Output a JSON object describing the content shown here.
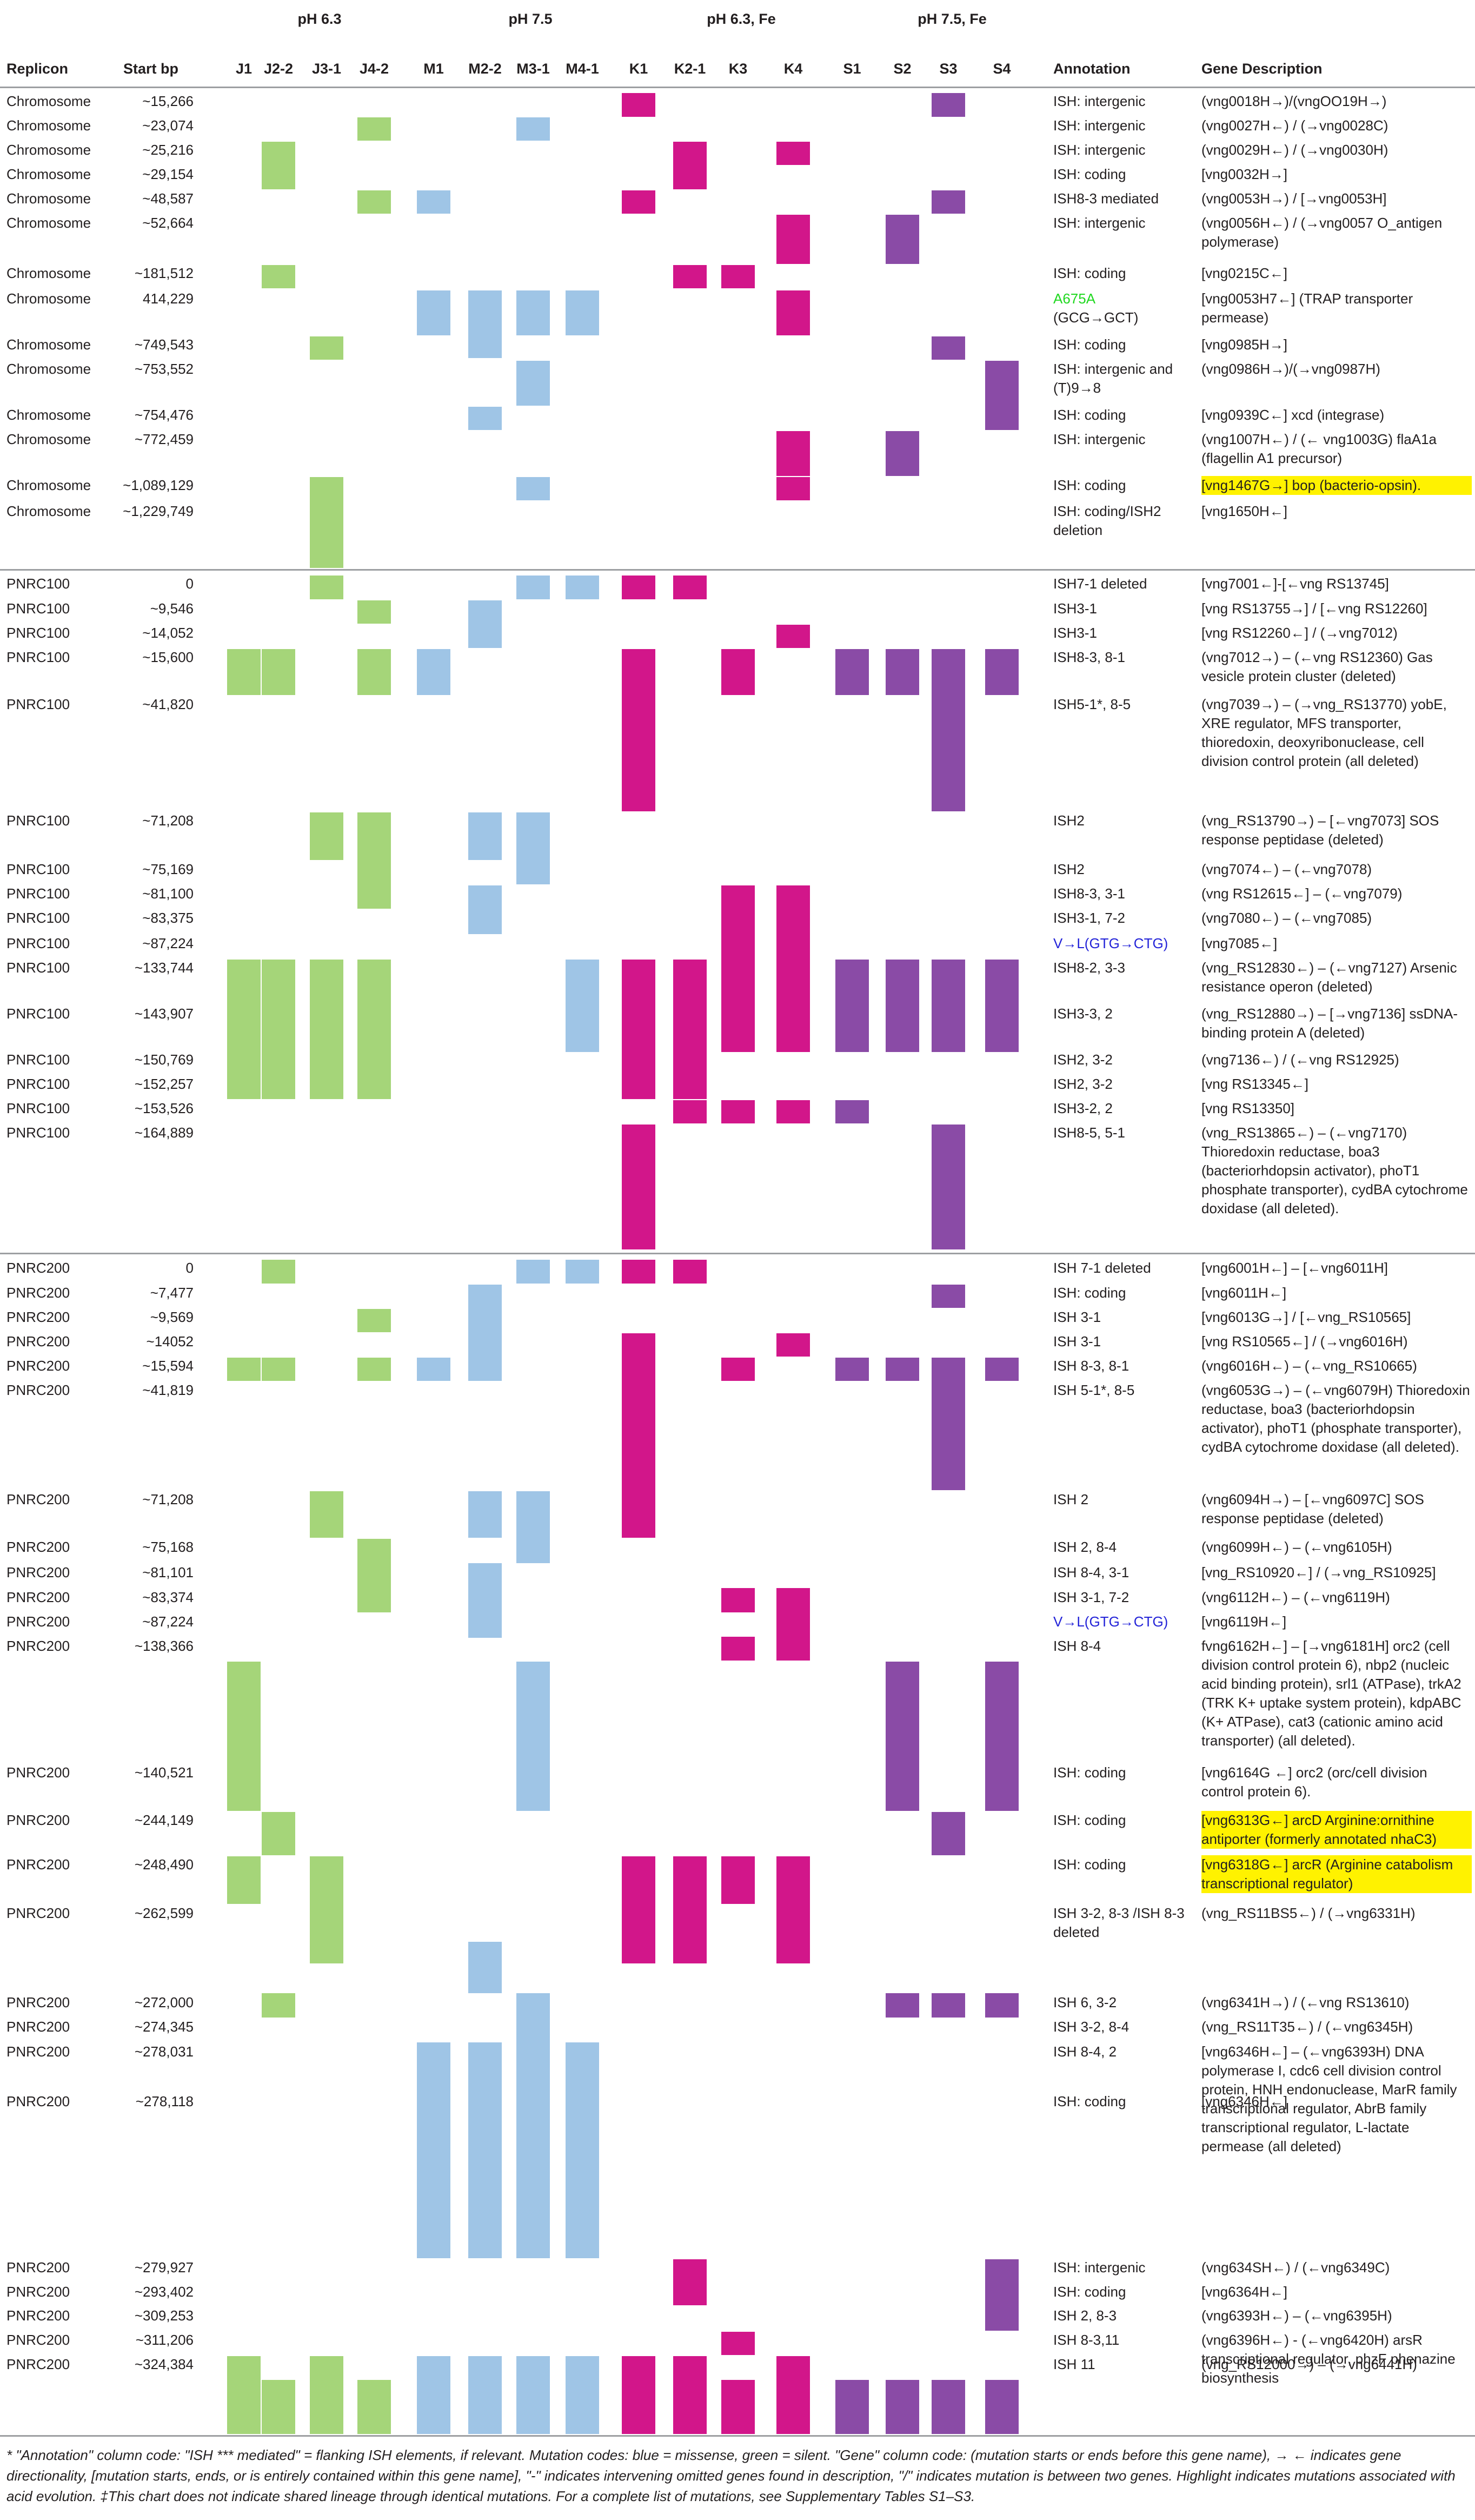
{
  "groups": [
    {
      "label": "pH 6.3"
    },
    {
      "label": "pH 7.5"
    },
    {
      "label": "pH 6.3, Fe"
    },
    {
      "label": "pH 7.5, Fe"
    }
  ],
  "columns": {
    "replicon": "Replicon",
    "start_bp": "Start bp",
    "strains": [
      "J1",
      "J2-2",
      "J3-1",
      "J4-2",
      "M1",
      "M2-2",
      "M3-1",
      "M4-1",
      "K1",
      "K2-1",
      "K3",
      "K4",
      "S1",
      "S2",
      "S3",
      "S4"
    ],
    "annotation": "Annotation",
    "gene_description": "Gene Description"
  },
  "colors": {
    "pH 6.3": "#a5d579",
    "pH 7.5": "#9fc5e6",
    "pH 6.3, Fe": "#d2168a",
    "pH 7.5, Fe": "#8a4ba6",
    "highlight": "#fff200",
    "missense": "#2323d8",
    "silent": "#20d820",
    "codon_change": "#e8232c",
    "divider": "#9d9fa2"
  },
  "rows": [
    {
      "replicon": "Chromosome",
      "start": "~15,266",
      "annotation": "ISH: intergenic",
      "desc": "(vng0018H→)/(vngOO19H→)"
    },
    {
      "replicon": "Chromosome",
      "start": "~23,074",
      "annotation": "ISH: intergenic",
      "desc": "(vng0027H←) / (→vng0028C)"
    },
    {
      "replicon": "Chromosome",
      "start": "~25,216",
      "annotation": "ISH: intergenic",
      "desc": "(vng0029H←) / (→vng0030H)"
    },
    {
      "replicon": "Chromosome",
      "start": "~29,154",
      "annotation": "ISH: coding",
      "desc": "[vng0032H→]"
    },
    {
      "replicon": "Chromosome",
      "start": "~48,587",
      "annotation": "ISH8-3 mediated",
      "desc": "(vng0053H→) / [→vng0053H]"
    },
    {
      "replicon": "Chromosome",
      "start": "~52,664",
      "annotation": "ISH: intergenic",
      "desc": "(vng0056H←) / (→vng0057 O_antigen polymerase)"
    },
    {
      "replicon": "Chromosome",
      "start": "~181,512",
      "annotation": "ISH: coding",
      "desc": "[vng0215C←]"
    },
    {
      "replicon": "Chromosome",
      "start": "414,229",
      "annotation": "A675A",
      "annotation_sub": "(GCG→GCT)",
      "desc": "[vng0053H7←] (TRAP transporter permease)"
    },
    {
      "replicon": "Chromosome",
      "start": "~749,543",
      "annotation": "ISH: coding",
      "desc": "[vng0985H→]"
    },
    {
      "replicon": "Chromosome",
      "start": "~753,552",
      "annotation": "ISH: intergenic and (T)9→8",
      "desc": "(vng0986H→)/(→vng0987H)"
    },
    {
      "replicon": "Chromosome",
      "start": "~754,476",
      "annotation": "ISH: coding",
      "desc": "[vng0939C←] xcd (integrase)"
    },
    {
      "replicon": "Chromosome",
      "start": "~772,459",
      "annotation": "ISH: intergenic",
      "desc": "(vng1007H←) / (← vng1003G) flaA1a (flagellin A1 precursor)"
    },
    {
      "replicon": "Chromosome",
      "start": "~1,089,129",
      "annotation": "ISH: coding",
      "desc": "[vng1467G→] bop (bacterio-opsin)."
    },
    {
      "replicon": "Chromosome",
      "start": "~1,229,749",
      "annotation": "ISH: coding/ISH2 deletion",
      "desc": "[vng1650H←]"
    },
    {
      "replicon": "PNRC100",
      "start": "0",
      "annotation": "ISH7-1 deleted",
      "desc": "[vng7001←]-[←vng RS13745]"
    },
    {
      "replicon": "PNRC100",
      "start": "~9,546",
      "annotation": "ISH3-1",
      "desc": "[vng RS13755→] / [←vng RS12260]"
    },
    {
      "replicon": "PNRC100",
      "start": "~14,052",
      "annotation": "ISH3-1",
      "desc": "[vng RS12260←] / (→vng7012)"
    },
    {
      "replicon": "PNRC100",
      "start": "~15,600",
      "annotation": "ISH8-3, 8-1",
      "desc": "(vng7012→) – (←vng RS12360) Gas vesicle protein cluster (deleted)"
    },
    {
      "replicon": "PNRC100",
      "start": "~41,820",
      "annotation": "ISH5-1*, 8-5",
      "desc": "(vng7039→) – (→vng_RS13770) yobE, XRE regulator, MFS transporter, thioredoxin, deoxyribonuclease, cell division control protein (all deleted)"
    },
    {
      "replicon": "PNRC100",
      "start": "~71,208",
      "annotation": "ISH2",
      "desc": "(vng_RS13790→) – [←vng7073] SOS response peptidase (deleted)"
    },
    {
      "replicon": "PNRC100",
      "start": "~75,169",
      "annotation": "ISH2",
      "desc": "(vng7074←) – (←vng7078)"
    },
    {
      "replicon": "PNRC100",
      "start": "~81,100",
      "annotation": "ISH8-3, 3-1",
      "desc": "(vng RS12615←] – (←vng7079)"
    },
    {
      "replicon": "PNRC100",
      "start": "~83,375",
      "annotation": "ISH3-1, 7-2",
      "desc": "(vng7080←) – (←vng7085)"
    },
    {
      "replicon": "PNRC100",
      "start": "~87,224",
      "annotation": "V→L(GTG→CTG)",
      "desc": "[vng7085←]"
    },
    {
      "replicon": "PNRC100",
      "start": "~133,744",
      "annotation": "ISH8-2, 3-3",
      "desc": "(vng_RS12830←) – (←vng7127) Arsenic resistance operon (deleted)"
    },
    {
      "replicon": "PNRC100",
      "start": "~143,907",
      "annotation": "ISH3-3, 2",
      "desc": "(vng_RS12880→) – [→vng7136] ssDNA-binding protein A (deleted)"
    },
    {
      "replicon": "PNRC100",
      "start": "~150,769",
      "annotation": "ISH2, 3-2",
      "desc": "(vng7136←) / (←vng RS12925)"
    },
    {
      "replicon": "PNRC100",
      "start": "~152,257",
      "annotation": "ISH2, 3-2",
      "desc": "[vng RS13345←]"
    },
    {
      "replicon": "PNRC100",
      "start": "~153,526",
      "annotation": "ISH3-2, 2",
      "desc": "[vng RS13350]"
    },
    {
      "replicon": "PNRC100",
      "start": "~164,889",
      "annotation": "ISH8-5, 5-1",
      "desc": "(vng_RS13865←) – (←vng7170) Thioredoxin reductase, boa3 (bacteriorhdopsin activator), phoT1 phosphate transporter), cydBA cytochrome doxidase (all deleted)."
    },
    {
      "replicon": "PNRC200",
      "start": "0",
      "annotation": "ISH 7-1 deleted",
      "desc": "[vng6001H←] – [←vng6011H]"
    },
    {
      "replicon": "PNRC200",
      "start": "~7,477",
      "annotation": "ISH: coding",
      "desc": "[vng6011H←]"
    },
    {
      "replicon": "PNRC200",
      "start": "~9,569",
      "annotation": "ISH 3-1",
      "desc": "[vng6013G→] / [←vng_RS10565]"
    },
    {
      "replicon": "PNRC200",
      "start": "~14052",
      "annotation": "ISH 3-1",
      "desc": "[vng RS10565←] / (→vng6016H)"
    },
    {
      "replicon": "PNRC200",
      "start": "~15,594",
      "annotation": "ISH 8-3, 8-1",
      "desc": "(vng6016H←) – (←vng_RS10665)"
    },
    {
      "replicon": "PNRC200",
      "start": "~41,819",
      "annotation": "ISH 5-1*, 8-5",
      "desc": "(vng6053G→) – (←vng6079H) Thioredoxin reductase, boa3 (bacteriorhdopsin activator), phoT1 (phosphate transporter), cydBA cytochrome doxidase (all deleted)."
    },
    {
      "replicon": "PNRC200",
      "start": "~71,208",
      "annotation": "ISH 2",
      "desc": "(vng6094H→) – [←vng6097C] SOS response peptidase (deleted)"
    },
    {
      "replicon": "PNRC200",
      "start": "~75,168",
      "annotation": "ISH 2, 8-4",
      "desc": "(vng6099H←) – (←vng6105H)"
    },
    {
      "replicon": "PNRC200",
      "start": "~81,101",
      "annotation": "ISH 8-4, 3-1",
      "desc": "[vng_RS10920←] / (→vng_RS10925]"
    },
    {
      "replicon": "PNRC200",
      "start": "~83,374",
      "annotation": "ISH 3-1, 7-2",
      "desc": "(vng6112H←) – (←vng6119H)"
    },
    {
      "replicon": "PNRC200",
      "start": "~87,224",
      "annotation": "V→L(GTG→CTG)",
      "desc": "[vng6119H←]"
    },
    {
      "replicon": "PNRC200",
      "start": "~138,366",
      "annotation": "ISH 8-4",
      "desc": "fvng6162H←] – [→vng6181H] orc2 (cell division control protein 6), nbp2 (nucleic acid binding protein), srl1 (ATPase), trkA2 (TRK K+ uptake system protein), kdpABC (K+ ATPase), cat3 (cationic amino acid transporter) (all deleted)."
    },
    {
      "replicon": "PNRC200",
      "start": "~140,521",
      "annotation": "ISH: coding",
      "desc": "[vng6164G ←] orc2 (orc/cell division control protein 6)."
    },
    {
      "replicon": "PNRC200",
      "start": "~244,149",
      "annotation": "ISH: coding",
      "desc": "[vng6313G←] arcD Arginine:ornithine antiporter (formerly annotated nhaC3)"
    },
    {
      "replicon": "PNRC200",
      "start": "~248,490",
      "annotation": "ISH: coding",
      "desc": "[vng6318G←] arcR (Arginine catabolism transcriptional regulator)"
    },
    {
      "replicon": "PNRC200",
      "start": "~262,599",
      "annotation": "ISH 3-2, 8-3 /ISH 8-3 deleted",
      "desc": "(vng_RS11BS5←) / (→vng6331H)"
    },
    {
      "replicon": "PNRC200",
      "start": "~272,000",
      "annotation": "ISH 6, 3-2",
      "desc": "(vng6341H→) / (←vng RS13610)"
    },
    {
      "replicon": "PNRC200",
      "start": "~274,345",
      "annotation": "ISH 3-2, 8-4",
      "desc": "(vng_RS11T35←) / (←vng6345H)"
    },
    {
      "replicon": "PNRC200",
      "start": "~278,031",
      "annotation": "ISH 8-4, 2",
      "desc": "[vng6346H←] – (←vng6393H) DNA polymerase I, cdc6 cell division control protein, HNH endonuclease, MarR family transcriptional regulator, AbrB family transcriptional regulator, L-lactate permease (all deleted)"
    },
    {
      "replicon": "PNRC200",
      "start": "~278,118",
      "annotation": "ISH: coding",
      "desc": "[vng6346H←]"
    },
    {
      "replicon": "PNRC200",
      "start": "~279,927",
      "annotation": "ISH: intergenic",
      "desc": "(vng634SH←) / (←vng6349C)"
    },
    {
      "replicon": "PNRC200",
      "start": "~293,402",
      "annotation": "ISH: coding",
      "desc": "[vng6364H←]"
    },
    {
      "replicon": "PNRC200",
      "start": "~309,253",
      "annotation": "ISH 2, 8-3",
      "desc": "(vng6393H←) – (←vng6395H)"
    },
    {
      "replicon": "PNRC200",
      "start": "~311,206",
      "annotation": "ISH 8-3,11",
      "desc": "(vng6396H←) - (←vng6420H) arsR transcriptional regulator, phzF phenazine biosynthesis"
    },
    {
      "replicon": "PNRC200",
      "start": "~324,384",
      "annotation": "ISH 11",
      "desc": "(vng_RS12000→) – (→vng6441H)"
    }
  ],
  "footnote": "* \"Annotation\" column code: \"ISH *** mediated\" = flanking ISH elements, if relevant. Mutation codes: blue = missense, green = silent. \"Gene\" column code: (mutation starts or ends before this gene name), → ← indicates gene directionality, [mutation starts, ends, or is entirely contained within this gene name], \"-\" indicates intervening omitted genes found in description, \"/\" indicates mutation is between two genes. Highlight indicates mutations associated with acid evolution. ‡This chart does not indicate shared lineage through identical mutations. For a complete list of mutations, see Supplementary Tables S1–S3."
}
